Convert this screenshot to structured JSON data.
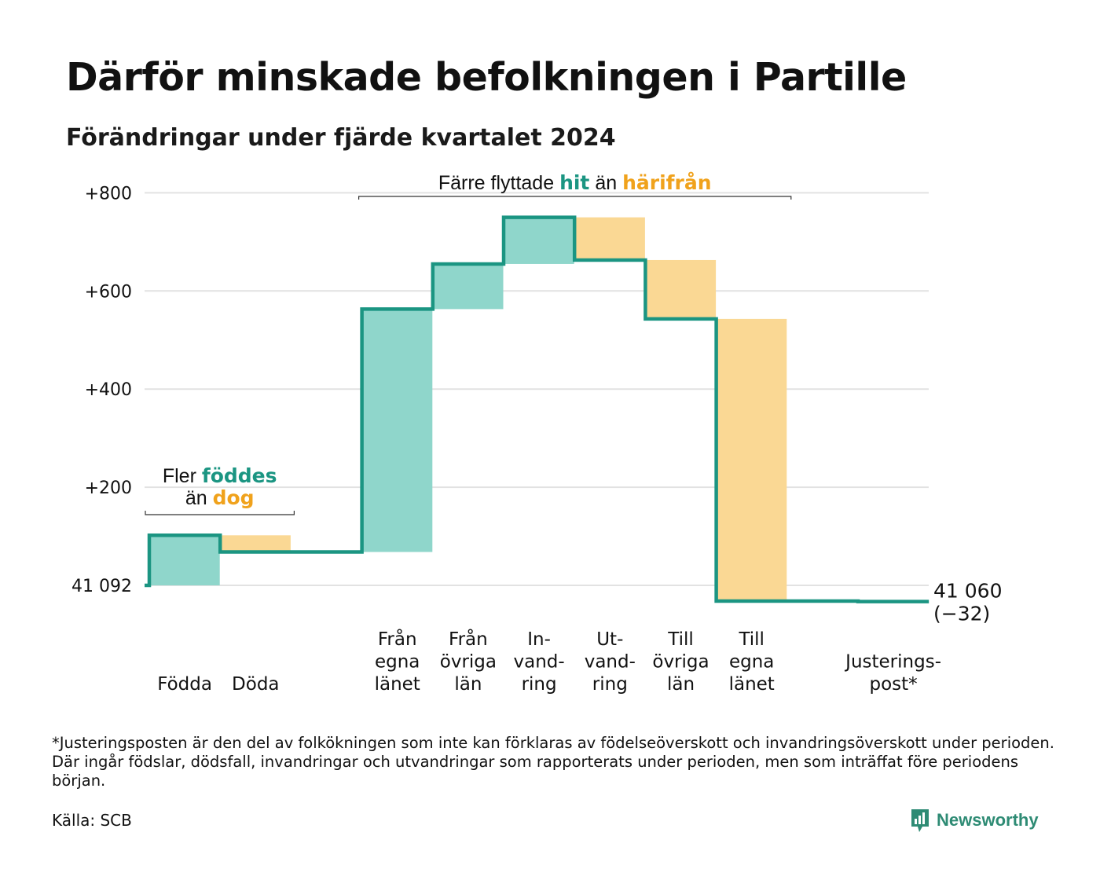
{
  "title": "Därför minskade befolkningen i Partille",
  "subtitle": "Förändringar under fjärde kvartalet 2024",
  "colors": {
    "positive_fill": "#8fd6cb",
    "negative_fill": "#fad894",
    "line": "#1b9582",
    "highlight_teal": "#1b9582",
    "highlight_orange": "#f0a21c",
    "grid": "#e2e2e2"
  },
  "chart_data": {
    "type": "waterfall",
    "baseline_value": 41092,
    "baseline_label": "41 092",
    "end_value": 41060,
    "end_label": "41 060",
    "end_change_label": "(−32)",
    "ylim": [
      -40,
      840
    ],
    "yticks": [
      {
        "value": 0,
        "label": "41 092"
      },
      {
        "value": 200,
        "label": "+200"
      },
      {
        "value": 400,
        "label": "+400"
      },
      {
        "value": 600,
        "label": "+600"
      },
      {
        "value": 800,
        "label": "+800"
      }
    ],
    "steps": [
      {
        "label": [
          "Födda"
        ],
        "change": 102,
        "slot": 0
      },
      {
        "label": [
          "Döda"
        ],
        "change": -34,
        "slot": 1
      },
      {
        "label": [
          "Från",
          "egna",
          "länet"
        ],
        "change": 495,
        "slot": 3
      },
      {
        "label": [
          "Från",
          "övriga",
          "län"
        ],
        "change": 92,
        "slot": 4
      },
      {
        "label": [
          "In-",
          "vand-",
          "ring"
        ],
        "change": 95,
        "slot": 5
      },
      {
        "label": [
          "Ut-",
          "vand-",
          "ring"
        ],
        "change": -87,
        "slot": 6
      },
      {
        "label": [
          "Till",
          "övriga",
          "län"
        ],
        "change": -120,
        "slot": 7
      },
      {
        "label": [
          "Till",
          "egna",
          "länet"
        ],
        "change": -575,
        "slot": 8
      },
      {
        "label": [
          "Justerings-",
          "post*"
        ],
        "change": -1,
        "slot": 10
      }
    ],
    "annotations": [
      {
        "lines": [
          [
            "Fler ",
            "föddes"
          ],
          [
            "än ",
            "dog"
          ]
        ]
      },
      {
        "lines": [
          [
            "Färre flyttade ",
            "hit",
            " än ",
            "härifrån"
          ]
        ]
      }
    ]
  },
  "footnote": "*Justeringsposten är den del av folkökningen som inte kan förklaras av födelseöverskott och invandringsöverskott under perioden. Där ingår födslar, dödsfall, invandringar och utvandringar som rapporterats under perioden, men som inträffat före periodens början.",
  "source": "Källa: SCB",
  "brand": {
    "name": "Newsworthy",
    "icon": "newsworthy-logo-icon"
  }
}
